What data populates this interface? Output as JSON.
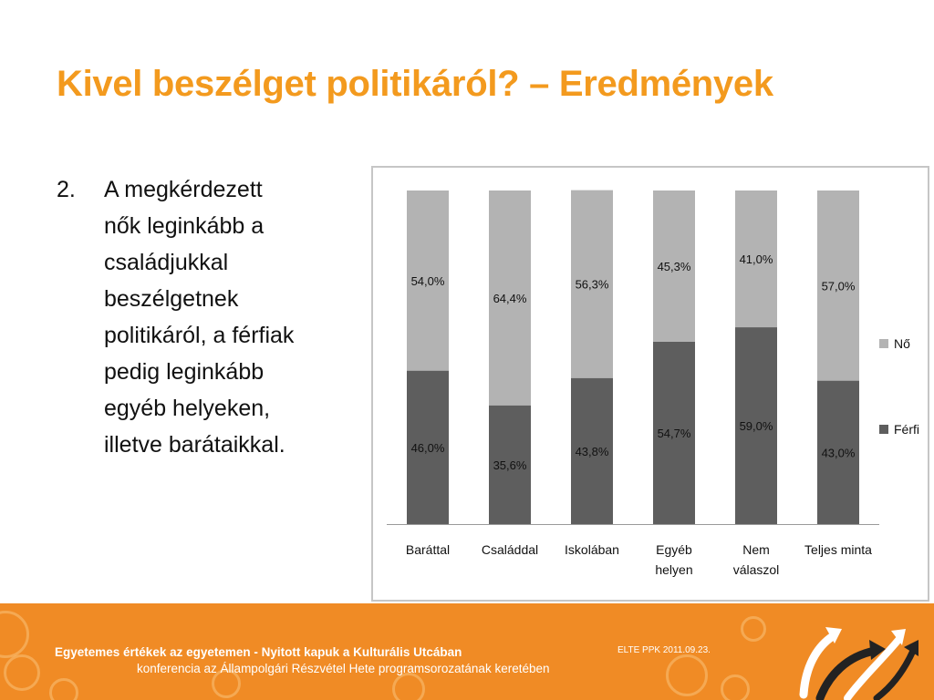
{
  "title": "Kivel beszélget politikáról? – Eredmények",
  "bullet": {
    "number": "2.",
    "lines": [
      "A megkérdezett",
      "nők leginkább a",
      "családjukkal",
      "beszélgetnek",
      "politikáról, a férfiak",
      "pedig leginkább",
      "egyéb helyeken,",
      "illetve barátaikkal."
    ]
  },
  "chart_data": {
    "type": "bar",
    "stacked": true,
    "percent_stacked": true,
    "categories": [
      [
        "Baráttal"
      ],
      [
        "Családdal"
      ],
      [
        "Iskolában"
      ],
      [
        "Egyéb",
        "helyen"
      ],
      [
        "Nem",
        "válaszol"
      ],
      [
        "Teljes minta"
      ]
    ],
    "series": [
      {
        "name": "Férfi",
        "values": [
          46.0,
          35.6,
          43.8,
          54.7,
          59.0,
          43.0
        ],
        "labels": [
          "46,0%",
          "35,6%",
          "43,8%",
          "54,7%",
          "59,0%",
          "43,0%"
        ],
        "color": "#5e5e5e"
      },
      {
        "name": "Nő",
        "values": [
          54.0,
          64.4,
          56.3,
          45.3,
          41.0,
          57.0
        ],
        "labels": [
          "54,0%",
          "64,4%",
          "56,3%",
          "45,3%",
          "41,0%",
          "57,0%"
        ],
        "color": "#b3b3b3"
      }
    ],
    "legend": {
      "position": "right",
      "order": [
        "Nő",
        "Férfi"
      ]
    },
    "ylim": [
      0,
      100
    ],
    "grid": false
  },
  "footer": {
    "line1": "Egyetemes értékek az egyetemen - Nyitott kapuk a Kulturális Utcában",
    "line2": "konferencia az Állampolgári Részvétel Hete programsorozatának keretében",
    "date": "ELTE PPK 2011.09.23.",
    "bg_color": "#f08b25"
  },
  "colors": {
    "title": "#f39a1e",
    "accent": "#f08b25"
  }
}
